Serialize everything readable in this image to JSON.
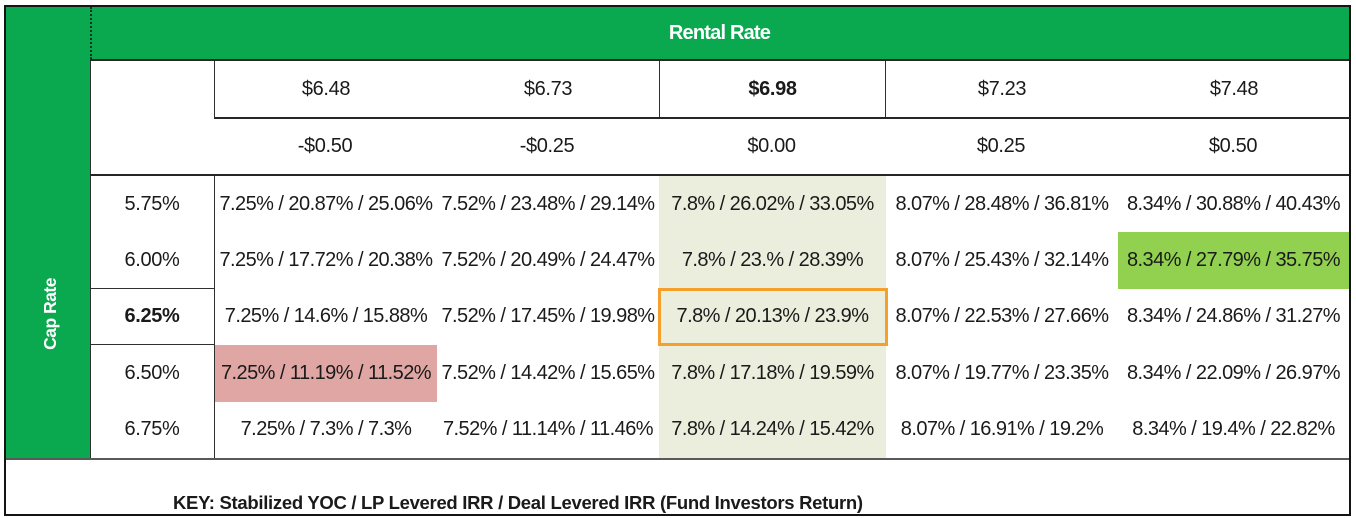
{
  "table": {
    "column_axis_title": "Rental Rate",
    "row_axis_title": "Cap Rate",
    "rental_rates": [
      "$6.48",
      "$6.73",
      "$6.98",
      "$7.23",
      "$7.48"
    ],
    "rental_rate_offsets": [
      "-$0.50",
      "-$0.25",
      "$0.00",
      "$0.25",
      "$0.50"
    ],
    "cap_rates": [
      "5.75%",
      "6.00%",
      "6.25%",
      "6.50%",
      "6.75%"
    ],
    "rows": [
      {
        "cells": [
          "7.25% / 20.87% / 25.06%",
          "7.52% / 23.48% / 29.14%",
          "7.8% / 26.02% / 33.05%",
          "8.07% / 28.48% / 36.81%",
          "8.34% / 30.88% / 40.43%"
        ]
      },
      {
        "cells": [
          "7.25% / 17.72% / 20.38%",
          "7.52% / 20.49% / 24.47%",
          "7.8% / 23.% / 28.39%",
          "8.07% / 25.43% / 32.14%",
          "8.34% / 27.79% / 35.75%"
        ]
      },
      {
        "cells": [
          "7.25% / 14.6% / 15.88%",
          "7.52% / 17.45% / 19.98%",
          "7.8% / 20.13% / 23.9%",
          "8.07% / 22.53% / 27.66%",
          "8.34% / 24.86% / 31.27%"
        ]
      },
      {
        "cells": [
          "7.25% / 11.19% / 11.52%",
          "7.52% / 14.42% / 15.65%",
          "7.8% / 17.18% / 19.59%",
          "8.07% / 19.77% / 23.35%",
          "8.34% / 22.09% / 26.97%"
        ]
      },
      {
        "cells": [
          "7.25% / 7.3% / 7.3%",
          "7.52% / 11.14% / 11.46%",
          "7.8% / 14.24% / 15.42%",
          "8.07% / 16.91% / 19.2%",
          "8.34% / 19.4% / 22.82%"
        ]
      }
    ],
    "key_note": "KEY: Stabilized YOC / LP Levered IRR / Deal Levered IRR (Fund Investors Return)",
    "highlights": {
      "base_case_column": "$6.98",
      "selected_cell": {
        "cap_rate": "6.25%",
        "rental_rate": "$6.98",
        "style": "orange-border"
      },
      "best_case_cell": {
        "cap_rate": "6.00%",
        "rental_rate": "$7.48",
        "style": "green-fill"
      },
      "worst_case_cell": {
        "cap_rate": "6.50%",
        "rental_rate": "$6.48",
        "style": "pink-fill"
      }
    }
  },
  "colors": {
    "header_green": "#0ba94f",
    "highlight_green": "#92d050",
    "highlight_pink": "#dfa6a4",
    "column_tint": "#ebeedd",
    "selection_orange": "#f5a02b",
    "text": "#1a1a1a"
  },
  "chart_data": {
    "type": "table",
    "title": "Rental Rate vs Cap Rate sensitivity table",
    "cell_value_format": "Stabilized YOC / LP Levered IRR / Deal Levered IRR",
    "column_axis": {
      "label": "Rental Rate",
      "values": [
        "$6.48",
        "$6.73",
        "$6.98",
        "$7.23",
        "$7.48"
      ],
      "offsets": [
        "-$0.50",
        "-$0.25",
        "$0.00",
        "$0.25",
        "$0.50"
      ]
    },
    "row_axis": {
      "label": "Cap Rate",
      "values": [
        "5.75%",
        "6.00%",
        "6.25%",
        "6.50%",
        "6.75%"
      ]
    },
    "cells": [
      [
        "7.25% / 20.87% / 25.06%",
        "7.52% / 23.48% / 29.14%",
        "7.8% / 26.02% / 33.05%",
        "8.07% / 28.48% / 36.81%",
        "8.34% / 30.88% / 40.43%"
      ],
      [
        "7.25% / 17.72% / 20.38%",
        "7.52% / 20.49% / 24.47%",
        "7.8% / 23.% / 28.39%",
        "8.07% / 25.43% / 32.14%",
        "8.34% / 27.79% / 35.75%"
      ],
      [
        "7.25% / 14.6% / 15.88%",
        "7.52% / 17.45% / 19.98%",
        "7.8% / 20.13% / 23.9%",
        "8.07% / 22.53% / 27.66%",
        "8.34% / 24.86% / 31.27%"
      ],
      [
        "7.25% / 11.19% / 11.52%",
        "7.52% / 14.42% / 15.65%",
        "7.8% / 17.18% / 19.59%",
        "8.07% / 19.77% / 23.35%",
        "8.34% / 22.09% / 26.97%"
      ],
      [
        "7.25% / 7.3% / 7.3%",
        "7.52% / 11.14% / 11.46%",
        "7.8% / 14.24% / 15.42%",
        "8.07% / 16.91% / 19.2%",
        "8.34% / 19.4% / 22.82%"
      ]
    ]
  }
}
